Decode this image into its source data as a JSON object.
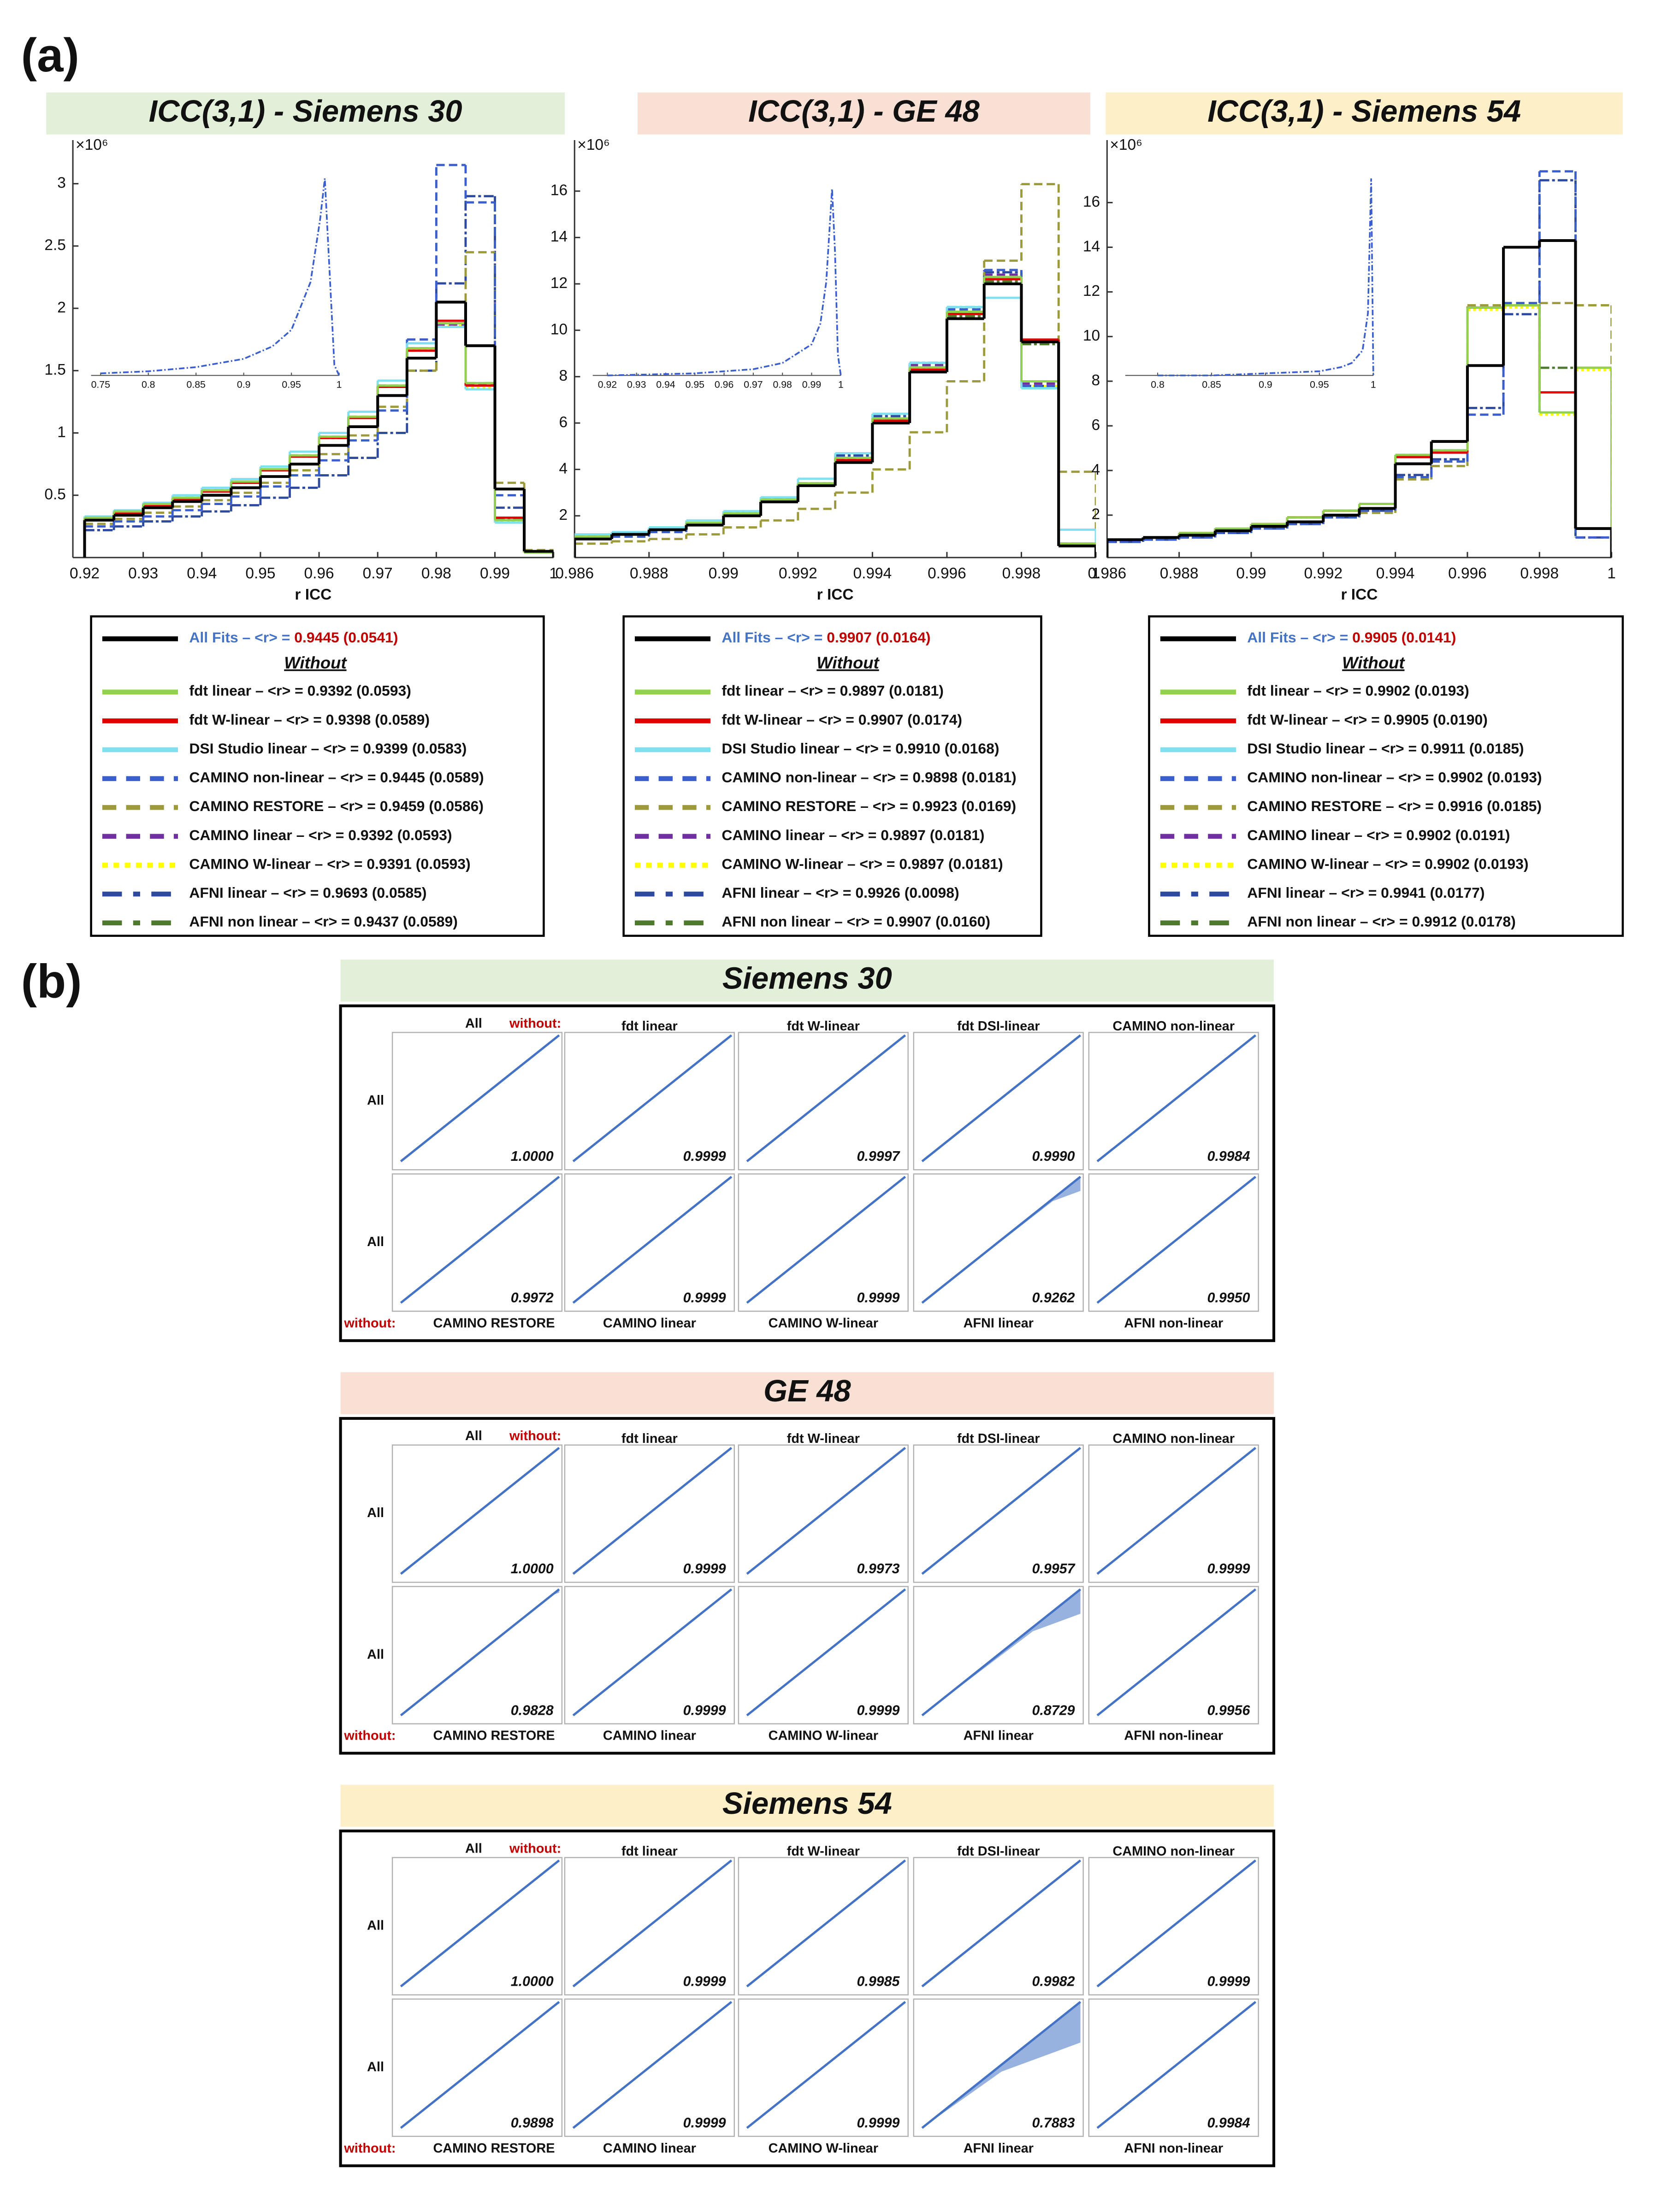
{
  "panel_label_a": "(a)",
  "panel_label_b": "(b)",
  "chart_data": [
    {
      "type": "histogram",
      "title": "ICC(3,1) - Siemens 30",
      "title_color": "#e2efd9",
      "xlabel": "r ICC",
      "y_multiplier": "×10⁶",
      "bins": [
        0.92,
        0.925,
        0.93,
        0.935,
        0.94,
        0.945,
        0.95,
        0.955,
        0.96,
        0.965,
        0.97,
        0.975,
        0.98,
        0.985,
        0.99,
        0.995,
        1.0
      ],
      "xlim": [
        0.918,
        1.0
      ],
      "xticks": [
        0.92,
        0.93,
        0.94,
        0.95,
        0.96,
        0.97,
        0.98,
        0.99,
        1
      ],
      "ylim": [
        0,
        3.35
      ],
      "yticks": [
        0.5,
        1,
        1.5,
        2,
        2.5,
        3
      ],
      "legend_without": "Without",
      "series": [
        {
          "name": "All Fits – <r> =",
          "stat": "0.9445 (0.0541)",
          "color": "#000000",
          "dash": "solid",
          "values": [
            0.3,
            0.34,
            0.4,
            0.45,
            0.5,
            0.56,
            0.65,
            0.75,
            0.9,
            1.05,
            1.3,
            1.6,
            2.05,
            1.7,
            0.55,
            0.05
          ]
        },
        {
          "name": "fdt linear – <r> = 0.9392 (0.0593)",
          "color": "#92d050",
          "dash": "solid",
          "values": [
            0.32,
            0.37,
            0.43,
            0.48,
            0.54,
            0.61,
            0.71,
            0.82,
            0.97,
            1.13,
            1.38,
            1.68,
            1.88,
            1.4,
            0.3,
            0.04
          ]
        },
        {
          "name": "fdt W-linear – <r> = 0.9398 (0.0589)",
          "color": "#e00000",
          "dash": "solid",
          "values": [
            0.31,
            0.36,
            0.42,
            0.47,
            0.53,
            0.6,
            0.7,
            0.81,
            0.96,
            1.12,
            1.37,
            1.66,
            1.9,
            1.38,
            0.32,
            0.04
          ]
        },
        {
          "name": "DSI Studio linear – <r> = 0.9399 (0.0583)",
          "color": "#7fe0f0",
          "dash": "solid",
          "values": [
            0.33,
            0.38,
            0.44,
            0.5,
            0.56,
            0.63,
            0.73,
            0.85,
            1.0,
            1.17,
            1.42,
            1.72,
            1.85,
            1.35,
            0.28,
            0.04
          ]
        },
        {
          "name": "CAMINO non-linear – <r> = 0.9445 (0.0589)",
          "color": "#3a5fcd",
          "dash": "dashed",
          "values": [
            0.25,
            0.29,
            0.33,
            0.38,
            0.43,
            0.49,
            0.57,
            0.66,
            0.78,
            0.94,
            1.18,
            1.75,
            3.15,
            2.85,
            0.5,
            0.05
          ]
        },
        {
          "name": "CAMINO RESTORE – <r> = 0.9459 (0.0586)",
          "color": "#9c9a3a",
          "dash": "dashed",
          "values": [
            0.27,
            0.31,
            0.36,
            0.41,
            0.46,
            0.52,
            0.6,
            0.7,
            0.83,
            0.98,
            1.21,
            1.5,
            1.85,
            2.45,
            0.6,
            0.06
          ]
        },
        {
          "name": "CAMINO linear – <r> = 0.9392 (0.0593)",
          "color": "#7030a0",
          "dash": "dashed",
          "values": [
            0.32,
            0.37,
            0.43,
            0.48,
            0.54,
            0.61,
            0.71,
            0.82,
            0.97,
            1.13,
            1.38,
            1.68,
            1.87,
            1.39,
            0.3,
            0.04
          ]
        },
        {
          "name": "CAMINO W-linear – <r> = 0.9391 (0.0593)",
          "color": "#ffff00",
          "dash": "dotted",
          "values": [
            0.32,
            0.37,
            0.43,
            0.48,
            0.54,
            0.61,
            0.71,
            0.82,
            0.97,
            1.13,
            1.38,
            1.67,
            1.86,
            1.36,
            0.29,
            0.04
          ]
        },
        {
          "name": "AFNI linear – <r> = 0.9693 (0.0585)",
          "color": "#2e4a9e",
          "dash": "dashdot",
          "values": [
            0.22,
            0.25,
            0.29,
            0.33,
            0.37,
            0.42,
            0.48,
            0.56,
            0.66,
            0.8,
            1.0,
            1.5,
            2.2,
            2.9,
            0.4,
            0.05
          ]
        },
        {
          "name": "AFNI non linear – <r> = 0.9437 (0.0589)",
          "color": "#4e7a2c",
          "dash": "dashdot",
          "values": [
            0.31,
            0.36,
            0.42,
            0.47,
            0.53,
            0.6,
            0.7,
            0.81,
            0.96,
            1.12,
            1.37,
            1.66,
            1.88,
            1.4,
            0.31,
            0.04
          ]
        }
      ],
      "inset": {
        "xlim": [
          0.74,
          1.0
        ],
        "ylim": [
          0,
          1
        ],
        "xticks": [
          0.75,
          0.8,
          0.85,
          0.9,
          0.95,
          1
        ],
        "color": "#3a5fcd",
        "x": [
          0.75,
          0.8,
          0.85,
          0.9,
          0.93,
          0.95,
          0.97,
          0.98,
          0.985,
          0.99,
          0.995,
          1.0
        ],
        "values": [
          0.01,
          0.02,
          0.04,
          0.08,
          0.14,
          0.22,
          0.45,
          0.75,
          0.95,
          0.5,
          0.05,
          0.0
        ]
      }
    },
    {
      "type": "histogram",
      "title": "ICC(3,1) - GE 48",
      "title_color": "#f8e0d4",
      "xlabel": "r ICC",
      "y_multiplier": "×10⁶",
      "bins": [
        0.986,
        0.987,
        0.988,
        0.989,
        0.99,
        0.991,
        0.992,
        0.993,
        0.994,
        0.995,
        0.996,
        0.997,
        0.998,
        0.999,
        1.0
      ],
      "xlim": [
        0.986,
        1.0
      ],
      "xticks": [
        0.986,
        0.988,
        0.99,
        0.992,
        0.994,
        0.996,
        0.998,
        1
      ],
      "ylim": [
        0.2,
        18.2
      ],
      "yticks": [
        2,
        4,
        6,
        8,
        10,
        12,
        14,
        16
      ],
      "legend_without": "Without",
      "series": [
        {
          "name": "All Fits – <r> =",
          "stat": "0.9907 (0.0164)",
          "color": "#000000",
          "dash": "solid",
          "values": [
            1.0,
            1.2,
            1.4,
            1.6,
            2.0,
            2.6,
            3.3,
            4.3,
            6.0,
            8.2,
            10.5,
            12.0,
            9.5,
            0.7
          ]
        },
        {
          "name": "fdt linear – <r> = 0.9897 (0.0181)",
          "color": "#92d050",
          "dash": "solid",
          "values": [
            1.1,
            1.2,
            1.4,
            1.7,
            2.1,
            2.7,
            3.4,
            4.5,
            6.2,
            8.4,
            10.8,
            12.3,
            7.8,
            0.8
          ]
        },
        {
          "name": "fdt W-linear – <r> = 0.9907 (0.0174)",
          "color": "#e00000",
          "dash": "solid",
          "values": [
            1.0,
            1.2,
            1.4,
            1.6,
            2.0,
            2.6,
            3.3,
            4.4,
            6.1,
            8.3,
            10.7,
            12.2,
            9.6,
            0.8
          ]
        },
        {
          "name": "DSI Studio linear – <r> = 0.9910 (0.0168)",
          "color": "#7fe0f0",
          "dash": "solid",
          "values": [
            1.2,
            1.3,
            1.5,
            1.8,
            2.2,
            2.8,
            3.6,
            4.7,
            6.4,
            8.6,
            11.0,
            11.4,
            7.5,
            1.4
          ]
        },
        {
          "name": "CAMINO non-linear – <r> = 0.9898 (0.0181)",
          "color": "#3a5fcd",
          "dash": "dashed",
          "values": [
            1.0,
            1.1,
            1.3,
            1.6,
            2.0,
            2.6,
            3.3,
            4.4,
            6.1,
            8.4,
            10.9,
            12.6,
            7.6,
            0.8
          ]
        },
        {
          "name": "CAMINO RESTORE – <r> = 0.9923 (0.0169)",
          "color": "#9c9a3a",
          "dash": "dashed",
          "values": [
            0.8,
            0.9,
            1.0,
            1.2,
            1.5,
            1.8,
            2.3,
            3.0,
            4.0,
            5.6,
            7.8,
            13.0,
            16.3,
            3.9
          ]
        },
        {
          "name": "CAMINO linear – <r> = 0.9897 (0.0181)",
          "color": "#7030a0",
          "dash": "dashed",
          "values": [
            1.1,
            1.2,
            1.4,
            1.7,
            2.1,
            2.7,
            3.4,
            4.5,
            6.2,
            8.5,
            10.9,
            12.4,
            7.7,
            0.8
          ]
        },
        {
          "name": "CAMINO W-linear – <r> = 0.9897 (0.0181)",
          "color": "#ffff00",
          "dash": "dotted",
          "values": [
            1.1,
            1.2,
            1.4,
            1.7,
            2.1,
            2.7,
            3.4,
            4.5,
            6.2,
            8.4,
            10.8,
            12.3,
            7.6,
            0.8
          ]
        },
        {
          "name": "AFNI linear – <r> = 0.9926 (0.0098)",
          "color": "#2e4a9e",
          "dash": "dashdot",
          "values": [
            1.1,
            1.2,
            1.4,
            1.7,
            2.1,
            2.7,
            3.4,
            4.6,
            6.3,
            8.6,
            11.0,
            12.5,
            7.6,
            0.8
          ]
        },
        {
          "name": "AFNI non linear – <r> = 0.9907 (0.0160)",
          "color": "#4e7a2c",
          "dash": "dashdot",
          "values": [
            1.0,
            1.2,
            1.4,
            1.6,
            2.0,
            2.6,
            3.3,
            4.4,
            6.1,
            8.3,
            10.6,
            12.1,
            9.4,
            0.7
          ]
        }
      ],
      "inset": {
        "xlim": [
          0.915,
          1.0
        ],
        "ylim": [
          0,
          1
        ],
        "xticks": [
          0.92,
          0.93,
          0.94,
          0.95,
          0.96,
          0.97,
          0.98,
          0.99,
          1
        ],
        "color": "#3a5fcd",
        "x": [
          0.92,
          0.95,
          0.97,
          0.98,
          0.99,
          0.993,
          0.995,
          0.997,
          0.998,
          0.999,
          1.0
        ],
        "values": [
          0.0,
          0.01,
          0.03,
          0.06,
          0.15,
          0.25,
          0.45,
          0.9,
          0.6,
          0.1,
          0.0
        ]
      }
    },
    {
      "type": "histogram",
      "title": "ICC(3,1) - Siemens 54",
      "title_color": "#fdf0c8",
      "xlabel": "r ICC",
      "y_multiplier": "×10⁶",
      "bins": [
        0.986,
        0.987,
        0.988,
        0.989,
        0.99,
        0.991,
        0.992,
        0.993,
        0.994,
        0.995,
        0.996,
        0.997,
        0.998,
        0.999,
        1.0
      ],
      "xlim": [
        0.986,
        1.0
      ],
      "xticks": [
        0.986,
        0.988,
        0.99,
        0.992,
        0.994,
        0.996,
        0.998,
        1
      ],
      "ylim": [
        0.1,
        18.8
      ],
      "yticks": [
        2,
        4,
        6,
        8,
        10,
        12,
        14,
        16
      ],
      "legend_without": "Without",
      "series": [
        {
          "name": "All Fits – <r> =",
          "stat": "0.9905 (0.0141)",
          "color": "#000000",
          "dash": "solid",
          "values": [
            0.9,
            1.0,
            1.1,
            1.3,
            1.5,
            1.7,
            2.0,
            2.3,
            4.3,
            5.3,
            8.7,
            14.0,
            14.3,
            1.4
          ]
        },
        {
          "name": "fdt linear – <r> = 0.9902 (0.0193)",
          "color": "#92d050",
          "dash": "solid",
          "values": [
            0.9,
            1.0,
            1.2,
            1.4,
            1.6,
            1.9,
            2.2,
            2.5,
            4.7,
            4.9,
            11.3,
            11.4,
            6.6,
            8.6
          ]
        },
        {
          "name": "fdt W-linear – <r> = 0.9905 (0.0190)",
          "color": "#e00000",
          "dash": "solid",
          "values": [
            0.9,
            1.0,
            1.2,
            1.4,
            1.6,
            1.9,
            2.2,
            2.5,
            4.6,
            4.8,
            11.3,
            11.4,
            7.5,
            8.6
          ]
        },
        {
          "name": "DSI Studio linear – <r> = 0.9911 (0.0185)",
          "color": "#7fe0f0",
          "dash": "solid",
          "values": [
            0.9,
            1.0,
            1.2,
            1.4,
            1.6,
            1.9,
            2.2,
            2.5,
            4.7,
            4.9,
            11.3,
            11.4,
            6.6,
            8.6
          ]
        },
        {
          "name": "CAMINO non-linear – <r> = 0.9902 (0.0193)",
          "color": "#3a5fcd",
          "dash": "dashed",
          "values": [
            0.8,
            0.9,
            1.0,
            1.2,
            1.4,
            1.6,
            1.9,
            2.2,
            3.7,
            4.4,
            6.5,
            11.5,
            17.4,
            1.0
          ]
        },
        {
          "name": "CAMINO RESTORE – <r> = 0.9916 (0.0185)",
          "color": "#9c9a3a",
          "dash": "dashed",
          "values": [
            0.8,
            0.9,
            1.0,
            1.2,
            1.4,
            1.6,
            1.9,
            2.1,
            3.6,
            4.2,
            11.4,
            11.5,
            11.5,
            11.4
          ]
        },
        {
          "name": "CAMINO linear – <r> = 0.9902 (0.0191)",
          "color": "#7030a0",
          "dash": "dashed",
          "values": [
            0.9,
            1.0,
            1.2,
            1.4,
            1.6,
            1.9,
            2.2,
            2.5,
            4.7,
            4.9,
            11.3,
            11.4,
            6.6,
            8.6
          ]
        },
        {
          "name": "CAMINO W-linear – <r> = 0.9902 (0.0193)",
          "color": "#ffff00",
          "dash": "dotted",
          "values": [
            0.9,
            1.0,
            1.2,
            1.4,
            1.6,
            1.9,
            2.2,
            2.5,
            4.7,
            4.9,
            11.2,
            11.3,
            6.5,
            8.5
          ]
        },
        {
          "name": "AFNI linear – <r> = 0.9941 (0.0177)",
          "color": "#2e4a9e",
          "dash": "dashdot",
          "values": [
            0.8,
            0.9,
            1.0,
            1.2,
            1.4,
            1.6,
            1.9,
            2.2,
            3.8,
            4.5,
            6.8,
            11.0,
            17.0,
            1.0
          ]
        },
        {
          "name": "AFNI non linear – <r> = 0.9912 (0.0178)",
          "color": "#4e7a2c",
          "dash": "dashdot",
          "values": [
            0.9,
            1.0,
            1.2,
            1.4,
            1.6,
            1.9,
            2.2,
            2.5,
            4.7,
            4.9,
            11.3,
            11.4,
            8.6,
            8.6
          ]
        }
      ],
      "inset": {
        "xlim": [
          0.77,
          1.0
        ],
        "ylim": [
          0,
          1
        ],
        "xticks": [
          0.8,
          0.85,
          0.9,
          0.95,
          1
        ],
        "color": "#3a5fcd",
        "x": [
          0.8,
          0.85,
          0.9,
          0.95,
          0.97,
          0.98,
          0.99,
          0.995,
          0.998,
          1.0
        ],
        "values": [
          0.0,
          0.0,
          0.01,
          0.02,
          0.04,
          0.06,
          0.12,
          0.3,
          0.95,
          0.0
        ]
      }
    }
  ],
  "scatter_labels": {
    "row": "All",
    "first_column": "All",
    "without": "without:",
    "top": [
      "fdt linear",
      "fdt W-linear",
      "fdt DSI-linear",
      "CAMINO non-linear"
    ],
    "bottom": [
      "CAMINO RESTORE",
      "CAMINO linear",
      "CAMINO W-linear",
      "AFNI linear",
      "AFNI non-linear"
    ]
  },
  "scatter_groups": [
    {
      "title": "Siemens 30",
      "title_color": "#e2efd9",
      "rows": [
        [
          "1.0000",
          "0.9999",
          "0.9997",
          "0.9990",
          "0.9984"
        ],
        [
          "0.9972",
          "0.9999",
          "0.9999",
          "0.9262",
          "0.9950"
        ]
      ]
    },
    {
      "title": "GE 48",
      "title_color": "#f8e0d4",
      "rows": [
        [
          "1.0000",
          "0.9999",
          "0.9973",
          "0.9957",
          "0.9999"
        ],
        [
          "0.9828",
          "0.9999",
          "0.9999",
          "0.8729",
          "0.9956"
        ]
      ]
    },
    {
      "title": "Siemens 54",
      "title_color": "#fdf0c8",
      "rows": [
        [
          "1.0000",
          "0.9999",
          "0.9985",
          "0.9982",
          "0.9999"
        ],
        [
          "0.9898",
          "0.9999",
          "0.9999",
          "0.7883",
          "0.9984"
        ]
      ]
    }
  ]
}
